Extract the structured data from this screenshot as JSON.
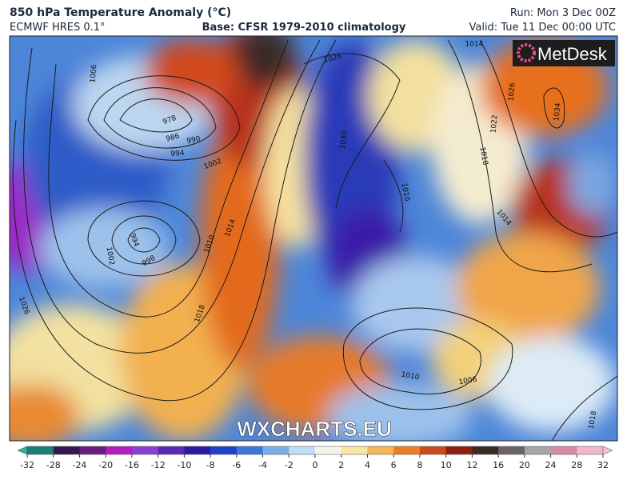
{
  "header": {
    "title": "850 hPa Temperature Anomaly (°C)",
    "model": "ECMWF HRES 0.1°",
    "base": "Base: CFSR 1979-2010 climatology",
    "run": "Run: Mon 3 Dec 00Z",
    "valid": "Valid: Tue 11 Dec 00:00 UTC"
  },
  "logo": "MetDesk",
  "watermark": "WXCHARTS.EU",
  "colorbar": {
    "ticks": [
      -32,
      -28,
      -24,
      -20,
      -16,
      -12,
      -10,
      -8,
      -6,
      -4,
      -2,
      0,
      2,
      4,
      6,
      8,
      10,
      12,
      16,
      20,
      24,
      28,
      32
    ],
    "colors": [
      "#1f7f78",
      "#3a1650",
      "#6a1a7a",
      "#b21cc0",
      "#8a3fd0",
      "#5a2ab0",
      "#2a1aa0",
      "#2240c8",
      "#3a78d8",
      "#79aee6",
      "#c4dcf2",
      "#f6f4ea",
      "#f6e6a0",
      "#f3b75a",
      "#ea7f28",
      "#cc4a1a",
      "#8e1e10",
      "#3a2a28",
      "#6a6466",
      "#a9a3a5",
      "#d58aa8",
      "#f2b7cf"
    ],
    "under_color": "#2ab59a",
    "over_color": "#f6c4d8"
  },
  "isobar_labels": [
    978,
    986,
    990,
    994,
    1002,
    1006,
    1002,
    994,
    998,
    1010,
    1014,
    1018,
    1026,
    1026,
    1030,
    1010,
    1014,
    1018,
    1022,
    1026,
    1034,
    1014,
    1010,
    1006,
    1018
  ]
}
